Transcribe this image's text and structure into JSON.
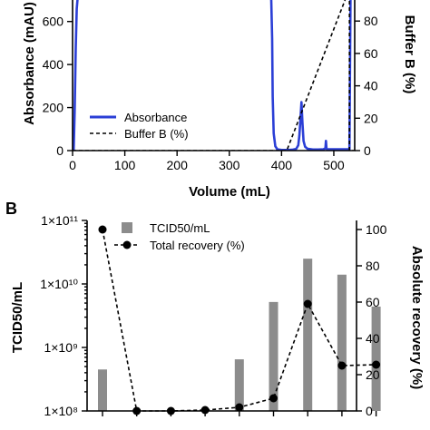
{
  "chart_data": [
    {
      "type": "line",
      "xlabel": "Volume (mL)",
      "ylabel": "Absorbance (mAU)",
      "y2label": "Buffer B (%)",
      "xlim": [
        0,
        540
      ],
      "ylim": [
        0,
        700
      ],
      "y2lim": [
        0,
        93
      ],
      "xticks": [
        "0",
        "100",
        "200",
        "300",
        "400",
        "500"
      ],
      "yticks": [
        "0",
        "200",
        "400",
        "600"
      ],
      "y2ticks": [
        "0",
        "20",
        "40",
        "60",
        "80"
      ],
      "legend": [
        "Absorbance",
        "Buffer B (%)"
      ],
      "series": [
        {
          "name": "Absorbance",
          "color": "#2b3fd6",
          "axis": "left",
          "x": [
            0,
            2,
            4,
            6,
            8,
            10,
            12,
            380,
            382,
            383,
            385,
            388,
            392,
            400,
            410,
            420,
            428,
            432,
            434,
            436,
            438,
            440,
            442,
            445,
            450,
            460,
            470,
            480,
            484,
            485,
            486,
            487,
            490,
            500,
            510,
            520,
            530,
            532,
            533
          ],
          "y": [
            0,
            0,
            180,
            480,
            660,
            720,
            720,
            720,
            520,
            250,
            80,
            20,
            6,
            3,
            3,
            4,
            8,
            25,
            70,
            140,
            225,
            130,
            45,
            18,
            8,
            5,
            5,
            6,
            10,
            45,
            10,
            6,
            6,
            6,
            6,
            6,
            6,
            720,
            720
          ]
        },
        {
          "name": "Buffer B (%)",
          "color": "#000000",
          "axis": "right",
          "dashed": true,
          "x": [
            0,
            410,
            530,
            530,
            540
          ],
          "y": [
            0,
            0,
            100,
            0,
            0
          ]
        }
      ]
    },
    {
      "type": "bar",
      "ylabel": "TCID50/mL",
      "y2label": "Absolute recovery (%)",
      "yscale": "log",
      "ylim": [
        100000000,
        100000000000
      ],
      "yticks": [
        "1×10⁸",
        "1×10⁹",
        "1×10¹⁰",
        "1×10¹¹"
      ],
      "y2lim": [
        0,
        105
      ],
      "y2ticks": [
        "0",
        "20",
        "40",
        "60",
        "80",
        "100"
      ],
      "legend": [
        "TCID50/mL",
        "Total recovery (%)"
      ],
      "bar_color": "#8c8c8c",
      "series": [
        {
          "name": "TCID50/mL",
          "type": "bar",
          "axis": "left",
          "values": [
            450000000,
            100000000,
            100000000,
            100000000,
            650000000,
            5200000000,
            25000000000,
            14000000000,
            4400000000
          ]
        },
        {
          "name": "Total recovery (%)",
          "type": "line",
          "axis": "right",
          "values": [
            100,
            0,
            0,
            0.5,
            2,
            7,
            59,
            25,
            25.5
          ]
        }
      ]
    }
  ],
  "panels": {
    "b": "B"
  }
}
